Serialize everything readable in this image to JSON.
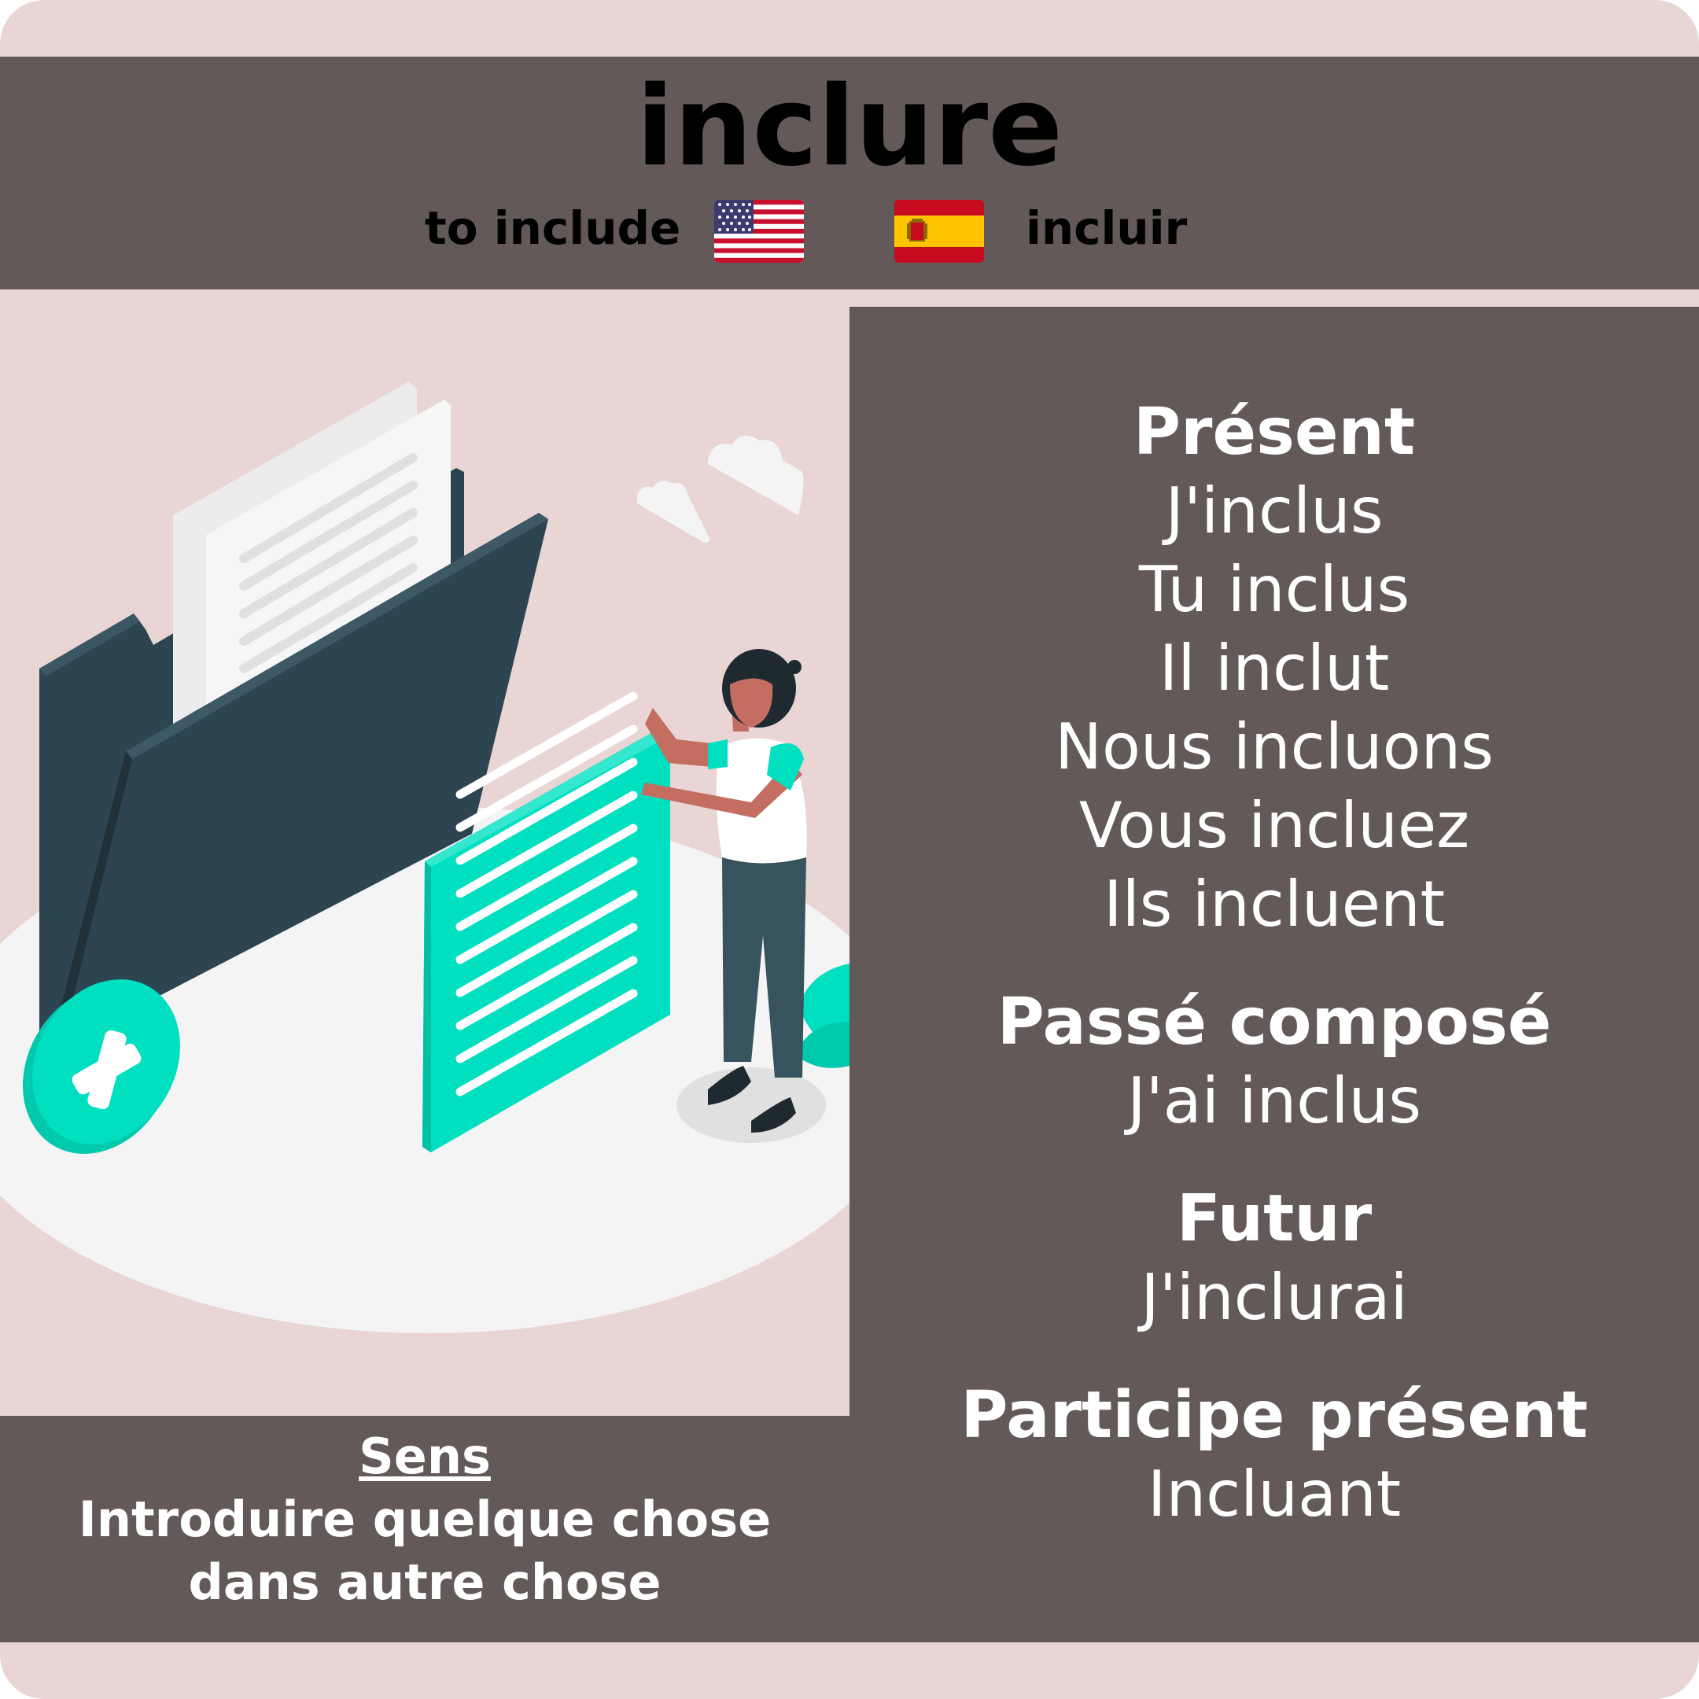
{
  "verb": "inclure",
  "translations": {
    "english": "to include",
    "spanish": "incluir"
  },
  "flags": {
    "english_flag_icon": "us-flag-icon",
    "spanish_flag_icon": "spain-flag-icon"
  },
  "conjugation": {
    "present": {
      "title": "Présent",
      "forms": [
        "J'inclus",
        "Tu inclus",
        "Il inclut",
        "Nous incluons",
        "Vous incluez",
        "Ils incluent"
      ]
    },
    "passe_compose": {
      "title": "Passé composé",
      "form": "J'ai inclus"
    },
    "futur": {
      "title": "Futur",
      "form": "J'inclurai"
    },
    "participe_present": {
      "title": "Participe présent",
      "form": "Incluant"
    }
  },
  "meaning": {
    "label": "Sens",
    "line1": "Introduire quelque chose",
    "line2": "dans autre chose"
  },
  "colors": {
    "background": "#e8d5d4",
    "panel": "#635958",
    "accent": "#00dfc0",
    "folder": "#2d4550",
    "text": "#ffffff"
  }
}
